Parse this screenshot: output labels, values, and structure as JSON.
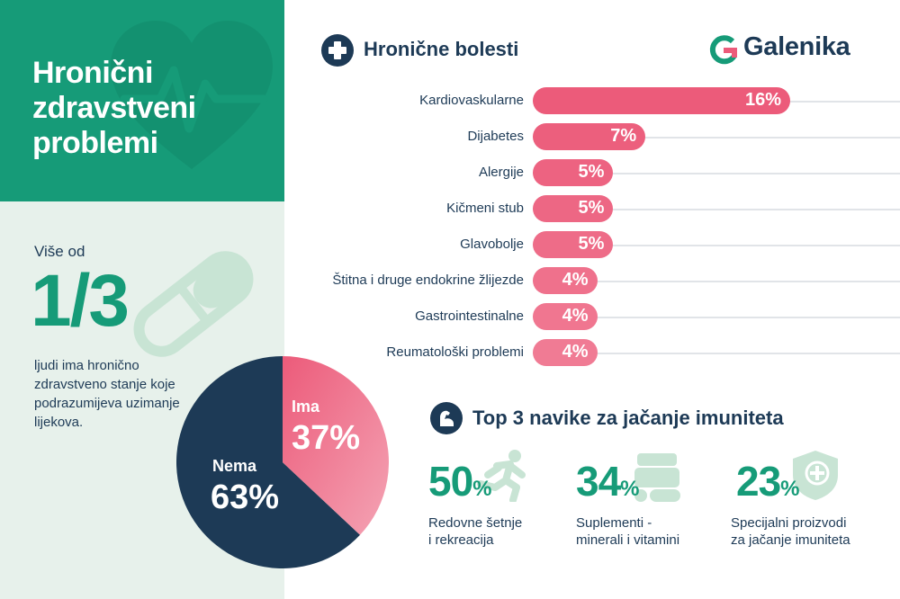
{
  "title": "Hronični zdravstveni problemi",
  "stat": {
    "prefix": "Više od",
    "fraction": "1/3",
    "description": "ljudi ima hronično zdravstveno stanje koje podrazumijeva uzimanje lijekova."
  },
  "brand": {
    "name": "Galenika",
    "accent": "#ec5b7a",
    "dark": "#1d3a56",
    "green": "#169b78"
  },
  "chronic_section": {
    "title": "Hronične bolesti",
    "icon": "plus-icon"
  },
  "habits_section": {
    "title": "Top 3 navike za jačanje imuniteta",
    "icon": "flexed-arm-icon"
  },
  "habits": [
    {
      "value": "50",
      "unit": "%",
      "label_line1": "Redovne šetnje",
      "label_line2": "i rekreacija",
      "icon": "running-person-icon"
    },
    {
      "value": "34",
      "unit": "%",
      "label_line1": "Suplementi -",
      "label_line2": "minerali i vitamini",
      "icon": "pills-icon"
    },
    {
      "value": "23",
      "unit": "%",
      "label_line1": "Specijalni proizvodi",
      "label_line2": "za jačanje imuniteta",
      "icon": "shield-plus-icon"
    }
  ],
  "pie": {
    "ima_label": "Ima",
    "ima_value": "37%",
    "nema_label": "Nema",
    "nema_value": "63%"
  },
  "chart_data": [
    {
      "type": "bar",
      "orientation": "horizontal",
      "title": "Hronične bolesti",
      "categories": [
        "Kardiovaskularne",
        "Dijabetes",
        "Alergije",
        "Kičmeni stub",
        "Glavobolje",
        "Štitna i druge endokrine žlijezde",
        "Gastrointestinalne",
        "Reumatološki problemi"
      ],
      "values": [
        16,
        7,
        5,
        5,
        5,
        4,
        4,
        4
      ],
      "value_labels": [
        "16%",
        "7%",
        "5%",
        "5%",
        "5%",
        "4%",
        "4%",
        "4%"
      ],
      "colors": [
        "#ec5b7a",
        "#ec5f7d",
        "#ed6381",
        "#ed6784",
        "#ee6c88",
        "#ef718c",
        "#f07690",
        "#f07b94"
      ]
    },
    {
      "type": "pie",
      "slices": [
        {
          "label": "Ima",
          "value": 37,
          "color": "#ec5b7a"
        },
        {
          "label": "Nema",
          "value": 63,
          "color": "#1d3a56"
        }
      ]
    }
  ]
}
